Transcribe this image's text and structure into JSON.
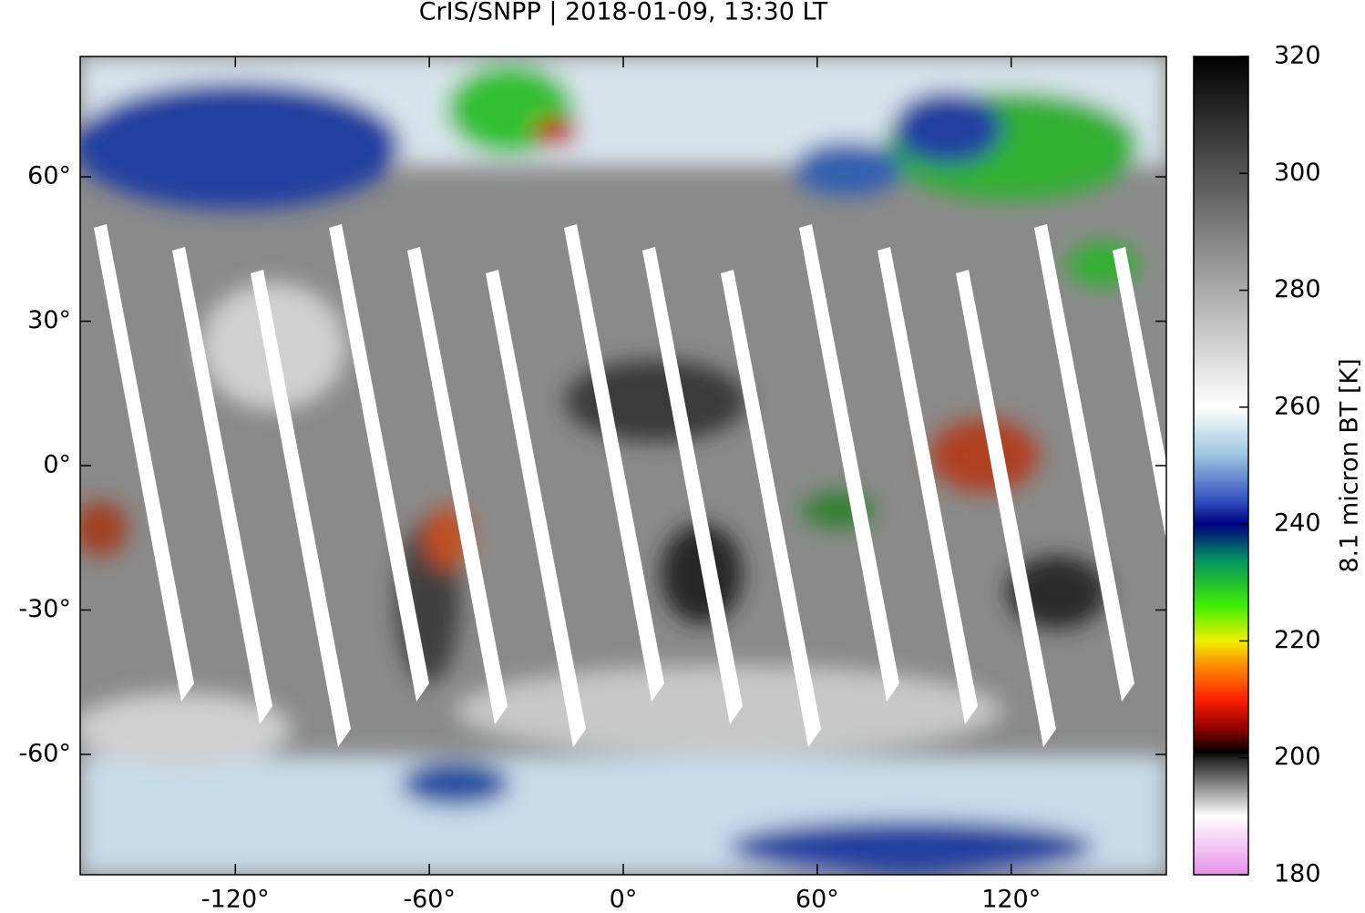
{
  "chart_data": {
    "type": "map",
    "title": "CrIS/SNPP | 2018-01-09, 13:30 LT",
    "xlim": [
      -168,
      168
    ],
    "ylim": [
      -85,
      85
    ],
    "xticks": [
      {
        "value": -120,
        "label": "-120°"
      },
      {
        "value": -60,
        "label": "-60°"
      },
      {
        "value": 0,
        "label": "0°"
      },
      {
        "value": 60,
        "label": "60°"
      },
      {
        "value": 120,
        "label": "120°"
      }
    ],
    "yticks": [
      {
        "value": -60,
        "label": "-60°"
      },
      {
        "value": -30,
        "label": "-30°"
      },
      {
        "value": 0,
        "label": "0°"
      },
      {
        "value": 30,
        "label": "30°"
      },
      {
        "value": 60,
        "label": "60°"
      }
    ],
    "colorbar": {
      "label": "8.1 micron BT [K]",
      "lim": [
        180,
        320
      ],
      "ticks": [
        180,
        200,
        220,
        240,
        260,
        280,
        300,
        320
      ],
      "colormap": [
        {
          "value": 180,
          "color": "#e890e8"
        },
        {
          "value": 190,
          "color": "#ffffff"
        },
        {
          "value": 200,
          "color": "#202020"
        },
        {
          "value": 201,
          "color": "#000000"
        },
        {
          "value": 205,
          "color": "#900000"
        },
        {
          "value": 210,
          "color": "#ff2000"
        },
        {
          "value": 216,
          "color": "#ff9000"
        },
        {
          "value": 220,
          "color": "#f0f000"
        },
        {
          "value": 226,
          "color": "#40f000"
        },
        {
          "value": 234,
          "color": "#009060"
        },
        {
          "value": 240,
          "color": "#000080"
        },
        {
          "value": 244,
          "color": "#3050c0"
        },
        {
          "value": 252,
          "color": "#a0c8e0"
        },
        {
          "value": 260,
          "color": "#ffffff"
        },
        {
          "value": 320,
          "color": "#000000"
        }
      ]
    }
  }
}
